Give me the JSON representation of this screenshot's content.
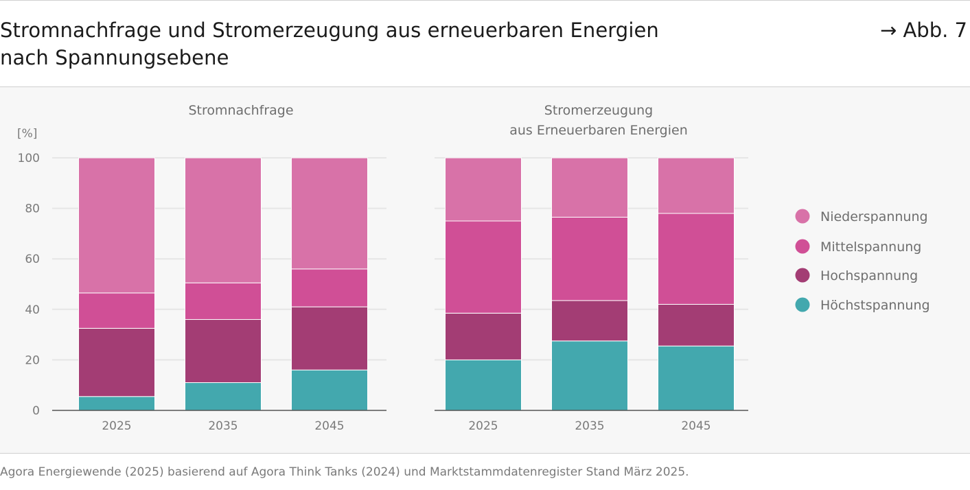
{
  "header": {
    "title": "Stromnachfrage und Stromerzeugung aus erneuerbaren Energien\nnach Spannungsebene",
    "figure_ref": "→ Abb. 7"
  },
  "source": "Agora Energiewende (2025) basierend auf Agora Think Tanks (2024) und Marktstammdatenregister Stand März 2025.",
  "colors": {
    "Höchstspannung": "#43a8ae",
    "Hochspannung": "#a33d74",
    "Mittelspannung": "#d04f96",
    "Niederspannung": "#d872a8",
    "panel_bg": "#f7f7f7",
    "grid": "#e6e6e6",
    "axis": "#555555"
  },
  "legend": {
    "items": [
      "Niederspannung",
      "Mittelspannung",
      "Hochspannung",
      "Höchstspannung"
    ]
  },
  "chart_data": [
    {
      "type": "bar",
      "stacked": true,
      "title": "Stromnachfrage",
      "ylabel": "[%]",
      "ylim": [
        0,
        100
      ],
      "yticks": [
        0,
        20,
        40,
        60,
        80,
        100
      ],
      "grid": true,
      "categories": [
        "2025",
        "2035",
        "2045"
      ],
      "series": [
        {
          "name": "Höchstspannung",
          "values": [
            5.5,
            11,
            16
          ]
        },
        {
          "name": "Hochspannung",
          "values": [
            27,
            25,
            25
          ]
        },
        {
          "name": "Mittelspannung",
          "values": [
            14,
            14.5,
            15
          ]
        },
        {
          "name": "Niederspannung",
          "values": [
            53.5,
            49.5,
            44
          ]
        }
      ]
    },
    {
      "type": "bar",
      "stacked": true,
      "title": "Stromerzeugung\naus Erneuerbaren Energien",
      "ylim": [
        0,
        100
      ],
      "grid": true,
      "categories": [
        "2025",
        "2035",
        "2045"
      ],
      "series": [
        {
          "name": "Höchstspannung",
          "values": [
            20,
            27.5,
            25.5
          ]
        },
        {
          "name": "Hochspannung",
          "values": [
            18.5,
            16,
            16.5
          ]
        },
        {
          "name": "Mittelspannung",
          "values": [
            36.5,
            33,
            36
          ]
        },
        {
          "name": "Niederspannung",
          "values": [
            25,
            23.5,
            22
          ]
        }
      ]
    }
  ]
}
